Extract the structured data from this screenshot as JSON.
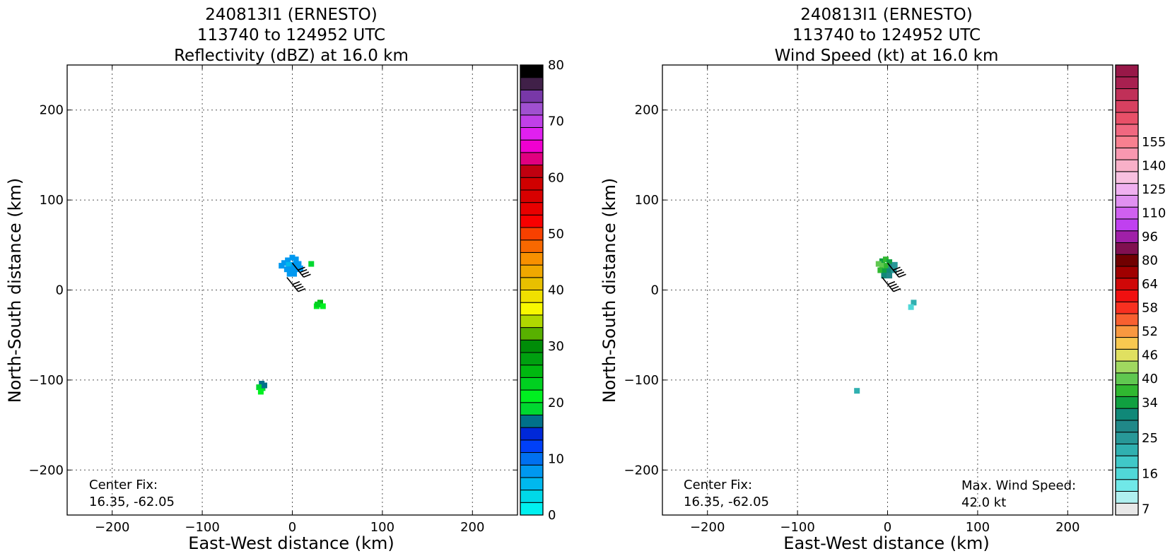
{
  "chart_data": [
    {
      "type": "scatter",
      "title_lines": [
        "240813I1 (ERNESTO)",
        "113740 to 124952 UTC",
        "Reflectivity (dBZ) at 16.0 km"
      ],
      "xlabel": "East-West distance (km)",
      "ylabel": "North-South distance (km)",
      "xlim": [
        -250,
        250
      ],
      "ylim": [
        -250,
        250
      ],
      "xticks": [
        -200,
        -100,
        0,
        100,
        200
      ],
      "yticks": [
        -200,
        -100,
        0,
        100,
        200
      ],
      "xtick_labels": [
        "−200",
        "−100",
        "0",
        "100",
        "200"
      ],
      "ytick_labels": [
        "−200",
        "−100",
        "0",
        "100",
        "200"
      ],
      "grid": true,
      "annotation_left": [
        "Center Fix:",
        "16.35, -62.05"
      ],
      "annotation_right": [],
      "colorbar": {
        "tick_values": [
          0,
          10,
          20,
          30,
          40,
          50,
          60,
          70,
          80
        ],
        "tick_labels": [
          "0",
          "10",
          "20",
          "30",
          "40",
          "50",
          "60",
          "70",
          "80"
        ],
        "colors": [
          "#00f0f0",
          "#00d8e8",
          "#00b8ee",
          "#0098f0",
          "#0070f0",
          "#0040f8",
          "#0028d8",
          "#00708a",
          "#00d830",
          "#00f020",
          "#00d020",
          "#00b810",
          "#00a010",
          "#008c08",
          "#58b000",
          "#b0d800",
          "#f8f800",
          "#f0e000",
          "#e8c000",
          "#f0a800",
          "#f89000",
          "#f86800",
          "#f84000",
          "#f80000",
          "#e80000",
          "#d80000",
          "#d00000",
          "#c00010",
          "#e00080",
          "#f000d0",
          "#e020f0",
          "#c040e8",
          "#a050d0",
          "#7838a8",
          "#402048",
          "#000000"
        ]
      },
      "echo_points": [
        {
          "x": -5,
          "y": 33,
          "v": 3
        },
        {
          "x": 0,
          "y": 36,
          "v": 3
        },
        {
          "x": 4,
          "y": 34,
          "v": 3
        },
        {
          "x": -9,
          "y": 30,
          "v": 3
        },
        {
          "x": -4,
          "y": 28,
          "v": 2
        },
        {
          "x": 2,
          "y": 28,
          "v": 3
        },
        {
          "x": 7,
          "y": 29,
          "v": 3
        },
        {
          "x": -6,
          "y": 23,
          "v": 3
        },
        {
          "x": -1,
          "y": 23,
          "v": 3
        },
        {
          "x": 4,
          "y": 23,
          "v": 3
        },
        {
          "x": 9,
          "y": 24,
          "v": 3
        },
        {
          "x": -3,
          "y": 18,
          "v": 3
        },
        {
          "x": 2,
          "y": 18,
          "v": 3
        },
        {
          "x": -12,
          "y": 27,
          "v": 3
        },
        {
          "x": 21,
          "y": 29,
          "v": 8
        },
        {
          "x": 31,
          "y": -14,
          "v": 11
        },
        {
          "x": 27,
          "y": -18,
          "v": 9
        },
        {
          "x": 34,
          "y": -18,
          "v": 9
        },
        {
          "x": 28,
          "y": -16,
          "v": 10
        },
        {
          "x": -34,
          "y": -104,
          "v": 7
        },
        {
          "x": -37,
          "y": -108,
          "v": 8
        },
        {
          "x": -33,
          "y": -109,
          "v": 8
        },
        {
          "x": -35,
          "y": -113,
          "v": 9
        },
        {
          "x": -31,
          "y": -106,
          "v": 7
        }
      ],
      "wind_barbs": [
        {
          "x": 0,
          "y": 30,
          "speed_kt": 40
        },
        {
          "x": -6,
          "y": 14,
          "speed_kt": 40
        }
      ]
    },
    {
      "type": "scatter",
      "title_lines": [
        "240813I1 (ERNESTO)",
        "113740 to 124952 UTC",
        "Wind Speed (kt) at 16.0 km"
      ],
      "xlabel": "East-West distance (km)",
      "ylabel": "North-South distance (km)",
      "xlim": [
        -250,
        250
      ],
      "ylim": [
        -250,
        250
      ],
      "xticks": [
        -200,
        -100,
        0,
        100,
        200
      ],
      "yticks": [
        -200,
        -100,
        0,
        100,
        200
      ],
      "xtick_labels": [
        "−200",
        "−100",
        "0",
        "100",
        "200"
      ],
      "ytick_labels": [
        "−200",
        "−100",
        "0",
        "100",
        "200"
      ],
      "grid": true,
      "annotation_left": [
        "Center Fix:",
        "16.35, -62.05"
      ],
      "annotation_right": [
        "Max. Wind Speed:",
        "42.0 kt"
      ],
      "colorbar": {
        "tick_labels": [
          "7",
          "16",
          "25",
          "34",
          "40",
          "46",
          "52",
          "58",
          "64",
          "80",
          "96",
          "110",
          "125",
          "140",
          "155"
        ],
        "tick_bins": [
          0,
          3,
          6,
          9,
          11,
          13,
          15,
          17,
          19,
          21,
          23,
          25,
          27,
          29,
          31
        ],
        "colors": [
          "#e8e8e8",
          "#b0f0f0",
          "#70e8e8",
          "#50d8d8",
          "#40c8c8",
          "#30b0b0",
          "#289898",
          "#208888",
          "#108878",
          "#10a040",
          "#30b830",
          "#60c850",
          "#a0d860",
          "#e0e060",
          "#f8c850",
          "#f89840",
          "#f86030",
          "#f83020",
          "#f01010",
          "#d00808",
          "#a00000",
          "#700000",
          "#801050",
          "#a020a8",
          "#c040f0",
          "#d060f0",
          "#e090f0",
          "#f0b0f0",
          "#f8c0e0",
          "#f8b0c8",
          "#f898b0",
          "#f88090",
          "#f06880",
          "#e85068",
          "#d84060",
          "#c03058",
          "#a82050",
          "#981848"
        ]
      },
      "echo_points": [
        {
          "x": -6,
          "y": 32,
          "v": 9
        },
        {
          "x": -2,
          "y": 34,
          "v": 10
        },
        {
          "x": 2,
          "y": 31,
          "v": 9
        },
        {
          "x": -10,
          "y": 29,
          "v": 11
        },
        {
          "x": -6,
          "y": 27,
          "v": 11
        },
        {
          "x": -1,
          "y": 27,
          "v": 10
        },
        {
          "x": 4,
          "y": 26,
          "v": 7
        },
        {
          "x": 8,
          "y": 28,
          "v": 6
        },
        {
          "x": -8,
          "y": 22,
          "v": 10
        },
        {
          "x": -3,
          "y": 21,
          "v": 9
        },
        {
          "x": 2,
          "y": 21,
          "v": 8
        },
        {
          "x": 7,
          "y": 22,
          "v": 6
        },
        {
          "x": -4,
          "y": 16,
          "v": 8
        },
        {
          "x": 2,
          "y": 16,
          "v": 7
        },
        {
          "x": 29,
          "y": -14,
          "v": 5
        },
        {
          "x": 26,
          "y": -19,
          "v": 3
        },
        {
          "x": -34,
          "y": -112,
          "v": 5
        }
      ],
      "wind_barbs": [
        {
          "x": 0,
          "y": 30,
          "speed_kt": 40
        },
        {
          "x": -6,
          "y": 14,
          "speed_kt": 40
        }
      ]
    }
  ]
}
